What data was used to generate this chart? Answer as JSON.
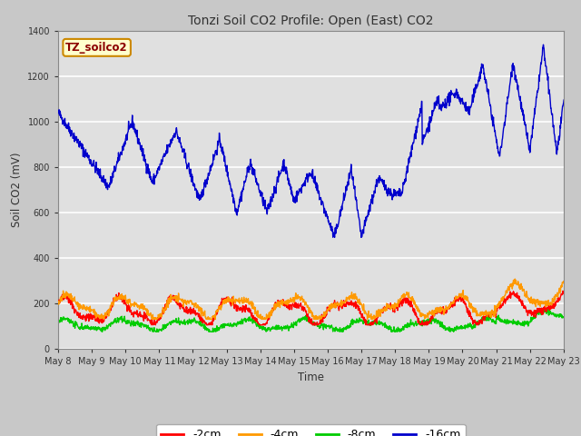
{
  "title": "Tonzi Soil CO2 Profile: Open (East) CO2",
  "ylabel": "Soil CO2 (mV)",
  "xlabel": "Time",
  "ylim": [
    0,
    1400
  ],
  "yticks": [
    0,
    200,
    400,
    600,
    800,
    1000,
    1200,
    1400
  ],
  "fig_bg_color": "#c8c8c8",
  "plot_bg_color": "#e0e0e0",
  "legend_label": "TZ_soilco2",
  "legend_box_color": "#ffffcc",
  "legend_box_edge": "#cc8800",
  "series_colors": {
    "-2cm": "#ff0000",
    "-4cm": "#ff9900",
    "-8cm": "#00cc00",
    "-16cm": "#0000cc"
  },
  "start_day": 8,
  "x_tick_labels": [
    "May 8",
    "May 9",
    "May 10",
    "May 11",
    "May 12",
    "May 13",
    "May 14",
    "May 15",
    "May 16",
    "May 17",
    "May 18",
    "May 19",
    "May 20",
    "May 21",
    "May 22",
    "May 23"
  ]
}
